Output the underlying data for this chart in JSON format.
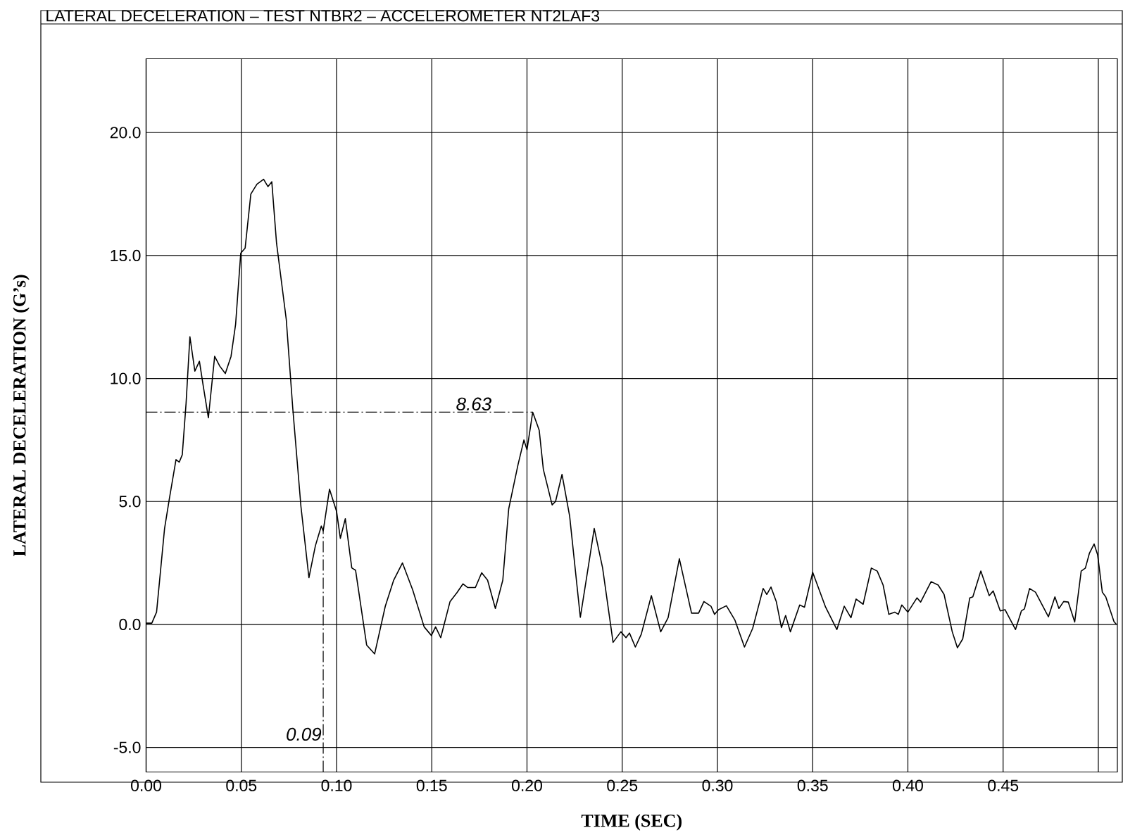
{
  "chart_data": {
    "type": "line",
    "title": "LATERAL DECELERATION – TEST NTBR2 – ACCELEROMETER NT2LAF3",
    "xlabel": "TIME (SEC)",
    "ylabel": "LATERAL DECELERATION (G’s)",
    "xlim": [
      0,
      0.51
    ],
    "ylim": [
      -6,
      23
    ],
    "xticks": [
      {
        "value": 0,
        "label": "0.00"
      },
      {
        "value": 0.05,
        "label": "0.05"
      },
      {
        "value": 0.1,
        "label": "0.10"
      },
      {
        "value": 0.15,
        "label": "0.15"
      },
      {
        "value": 0.2,
        "label": "0.20"
      },
      {
        "value": 0.25,
        "label": "0.25"
      },
      {
        "value": 0.3,
        "label": "0.30"
      },
      {
        "value": 0.35,
        "label": "0.35"
      },
      {
        "value": 0.4,
        "label": "0.40"
      },
      {
        "value": 0.45,
        "label": "0.45"
      },
      {
        "value": 0.5,
        "label": null
      }
    ],
    "yticks": [
      {
        "value": -5,
        "label": "-5.0"
      },
      {
        "value": 0,
        "label": "0.0"
      },
      {
        "value": 5,
        "label": "5.0"
      },
      {
        "value": 10,
        "label": "10.0"
      },
      {
        "value": 15,
        "label": "15.0"
      },
      {
        "value": 20,
        "label": "20.0"
      }
    ],
    "grid": true,
    "line_style": "solid",
    "ref_lines": [
      {
        "axis": "y",
        "value": 8.63,
        "label": "8.63",
        "line_style": "dashed"
      },
      {
        "axis": "x",
        "value": 0.093,
        "label": "0.09",
        "line_style": "dashed"
      }
    ],
    "series": [
      {
        "color": "#000000",
        "x": [
          0,
          0.003,
          0.0055,
          0.0097,
          0.0122,
          0.0157,
          0.0174,
          0.019,
          0.021,
          0.023,
          0.0256,
          0.028,
          0.03,
          0.0327,
          0.036,
          0.0387,
          0.0416,
          0.0446,
          0.047,
          0.0497,
          0.052,
          0.055,
          0.0582,
          0.0617,
          0.064,
          0.066,
          0.0685,
          0.0736,
          0.077,
          0.0813,
          0.0855,
          0.0889,
          0.092,
          0.093,
          0.0963,
          0.1,
          0.102,
          0.1046,
          0.108,
          0.11,
          0.1158,
          0.12,
          0.1256,
          0.13,
          0.1346,
          0.14,
          0.146,
          0.1498,
          0.152,
          0.1547,
          0.1596,
          0.1633,
          0.1664,
          0.1688,
          0.1729,
          0.1762,
          0.1793,
          0.1834,
          0.1873,
          0.1904,
          0.1953,
          0.1984,
          0.2,
          0.203,
          0.2064,
          0.2086,
          0.2132,
          0.215,
          0.2184,
          0.2224,
          0.228,
          0.2323,
          0.2353,
          0.2397,
          0.2452,
          0.2493,
          0.252,
          0.2538,
          0.2569,
          0.26,
          0.2653,
          0.2702,
          0.2741,
          0.28,
          0.2864,
          0.2901,
          0.2929,
          0.2966,
          0.2985,
          0.3006,
          0.3047,
          0.3092,
          0.3142,
          0.3185,
          0.324,
          0.3259,
          0.3281,
          0.3309,
          0.3336,
          0.3358,
          0.3383,
          0.3432,
          0.3457,
          0.35,
          0.3568,
          0.3627,
          0.3666,
          0.3701,
          0.3728,
          0.3765,
          0.3808,
          0.3839,
          0.387,
          0.39,
          0.3931,
          0.395,
          0.3968,
          0.4,
          0.4048,
          0.4067,
          0.4122,
          0.4159,
          0.419,
          0.4233,
          0.426,
          0.4288,
          0.4325,
          0.4341,
          0.4383,
          0.4427,
          0.4448,
          0.4485,
          0.451,
          0.4565,
          0.4596,
          0.4612,
          0.4639,
          0.467,
          0.4738,
          0.4772,
          0.4793,
          0.4818,
          0.4842,
          0.4876,
          0.491,
          0.4932,
          0.4953,
          0.4978,
          0.4996,
          0.5021,
          0.5039,
          0.5082,
          0.5095
        ],
        "values": [
          0.05,
          0.05,
          0.5,
          3.9,
          5.1,
          6.7,
          6.6,
          6.9,
          9.0,
          11.7,
          10.3,
          10.7,
          9.7,
          8.4,
          10.9,
          10.5,
          10.2,
          10.9,
          12.2,
          15.1,
          15.3,
          17.5,
          17.9,
          18.1,
          17.8,
          18.0,
          15.5,
          12.4,
          8.8,
          4.8,
          1.9,
          3.2,
          4.0,
          3.8,
          5.5,
          4.6,
          3.5,
          4.3,
          2.3,
          2.2,
          -0.84,
          -1.2,
          0.74,
          1.8,
          2.5,
          1.4,
          -0.1,
          -0.45,
          -0.1,
          -0.54,
          0.93,
          1.3,
          1.65,
          1.5,
          1.5,
          2.1,
          1.8,
          0.65,
          1.8,
          4.7,
          6.5,
          7.5,
          7.1,
          8.63,
          7.9,
          6.3,
          4.86,
          5.0,
          6.1,
          4.4,
          0.29,
          2.4,
          3.9,
          2.3,
          -0.73,
          -0.3,
          -0.54,
          -0.35,
          -0.92,
          -0.4,
          1.17,
          -0.3,
          0.27,
          2.67,
          0.46,
          0.46,
          0.93,
          0.74,
          0.41,
          0.6,
          0.76,
          0.17,
          -0.92,
          -0.16,
          1.46,
          1.22,
          1.52,
          0.93,
          -0.13,
          0.36,
          -0.3,
          0.79,
          0.7,
          2.12,
          0.7,
          -0.21,
          0.74,
          0.27,
          1.03,
          0.82,
          2.29,
          2.17,
          1.6,
          0.41,
          0.5,
          0.41,
          0.79,
          0.5,
          1.08,
          0.91,
          1.74,
          1.6,
          1.22,
          -0.3,
          -0.95,
          -0.59,
          1.08,
          1.12,
          2.17,
          1.17,
          1.36,
          0.55,
          0.6,
          -0.21,
          0.55,
          0.63,
          1.46,
          1.31,
          0.31,
          1.12,
          0.65,
          0.93,
          0.91,
          0.1,
          2.17,
          2.29,
          2.89,
          3.27,
          2.84,
          1.31,
          1.12,
          0.12,
          0.0
        ]
      }
    ]
  }
}
